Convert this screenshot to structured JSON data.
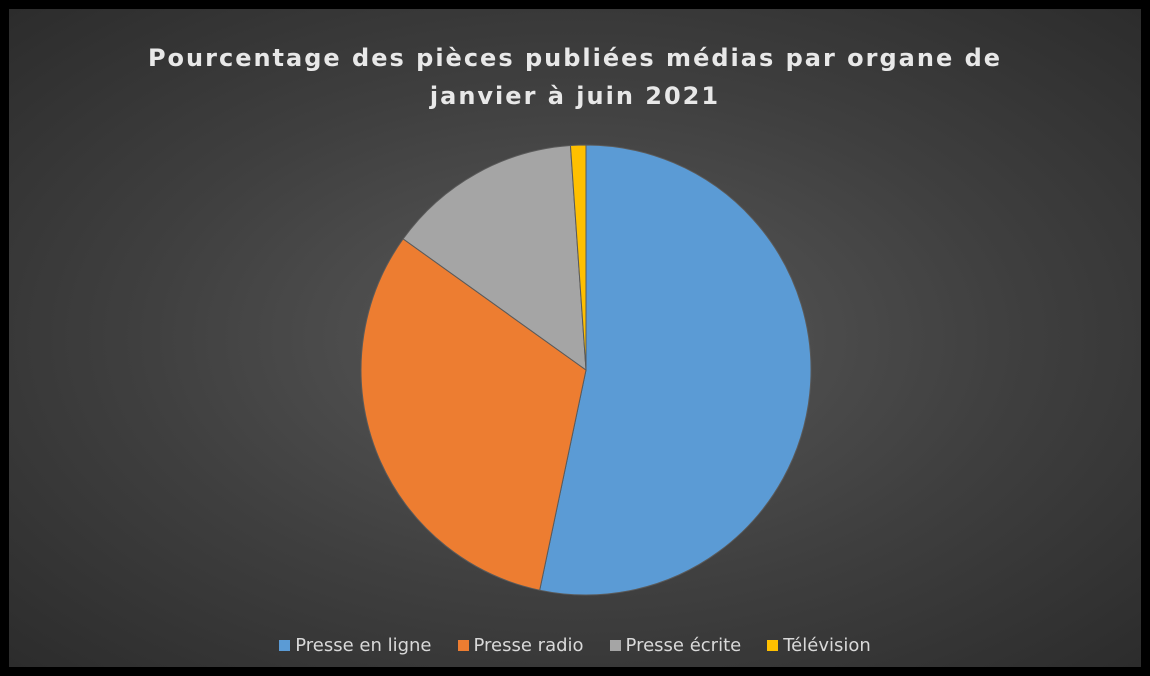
{
  "chart_data": {
    "type": "pie",
    "title": "Pourcentage des pièces publiées médias par organe de janvier à juin 2021",
    "categories": [
      "Presse en ligne",
      "Presse radio",
      "Presse écrite",
      "Télévision"
    ],
    "values": [
      53.3,
      31.6,
      14,
      1.1
    ],
    "colors": [
      "#5b9bd5",
      "#ed7d31",
      "#a5a5a5",
      "#ffc000"
    ],
    "legend": "bottom"
  }
}
